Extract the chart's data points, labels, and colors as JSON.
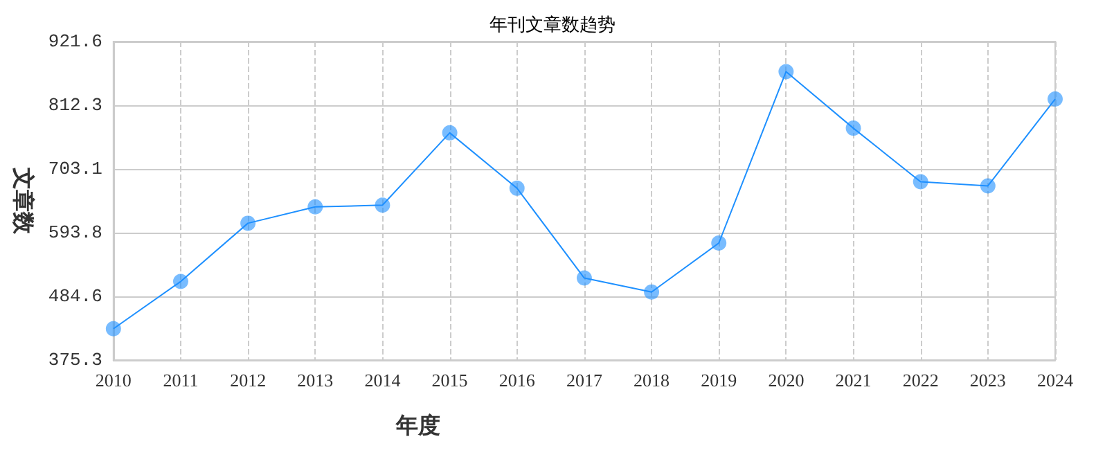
{
  "chart_data": {
    "type": "line",
    "title": "年刊文章数趋势",
    "xlabel": "年度",
    "ylabel": "文章数",
    "categories": [
      "2010",
      "2011",
      "2012",
      "2013",
      "2014",
      "2015",
      "2016",
      "2017",
      "2018",
      "2019",
      "2020",
      "2021",
      "2022",
      "2023",
      "2024"
    ],
    "series": [
      {
        "color": "#1e90ff",
        "values": [
          429,
          510,
          610,
          638,
          641,
          765,
          670,
          516,
          492,
          576,
          870,
          773,
          681,
          674,
          823
        ]
      }
    ],
    "ylim": [
      375.3,
      921.6
    ],
    "yticks": [
      375.3,
      484.6,
      593.8,
      703.1,
      812.3,
      921.6
    ],
    "grid": true,
    "marker": "circle",
    "line_style": "solid"
  }
}
